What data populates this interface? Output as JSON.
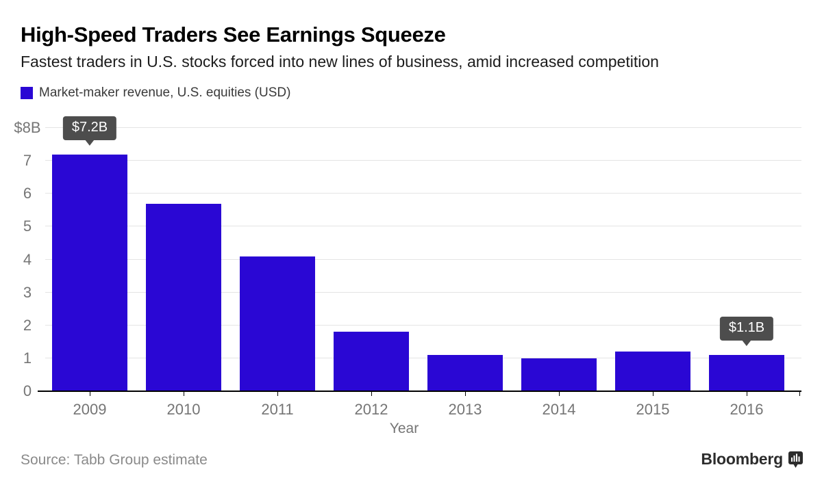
{
  "header": {
    "title": "High-Speed Traders See Earnings Squeeze",
    "subtitle": "Fastest traders in U.S. stocks forced into new lines of business, amid increased competition"
  },
  "legend": {
    "label": "Market-maker revenue, U.S. equities (USD)",
    "swatch_color": "#2a07d4"
  },
  "chart_data": {
    "type": "bar",
    "title": "High-Speed Traders See Earnings Squeeze",
    "subtitle": "Fastest traders in U.S. stocks forced into new lines of business, amid increased competition",
    "series_name": "Market-maker revenue, U.S. equities (USD)",
    "categories": [
      "2009",
      "2010",
      "2011",
      "2012",
      "2013",
      "2014",
      "2015",
      "2016"
    ],
    "values": [
      7.2,
      5.7,
      4.1,
      1.8,
      1.1,
      1.0,
      1.2,
      1.1
    ],
    "xlabel": "Year",
    "ylabel": "",
    "ylim": [
      0,
      8
    ],
    "y_ticks": [
      "0",
      "1",
      "2",
      "3",
      "4",
      "5",
      "6",
      "7",
      "$8B"
    ],
    "grid": true,
    "legend_position": "top-left",
    "bar_color": "#2a07d4",
    "annotations": [
      {
        "category": "2009",
        "label": "$7.2B"
      },
      {
        "category": "2016",
        "label": "$1.1B"
      }
    ]
  },
  "footer": {
    "source": "Source: Tabb Group estimate",
    "brand": "Bloomberg"
  },
  "colors": {
    "bar": "#2a07d4",
    "tooltip_bg": "#4d4d4d",
    "tooltip_text": "#ffffff",
    "axis": "#000000",
    "gridline": "#e4e4e4",
    "tick_label": "#757575",
    "title": "#000000",
    "subtitle": "#1c1c1c",
    "source": "#8a8a8a",
    "brand": "#2c2c2c"
  }
}
